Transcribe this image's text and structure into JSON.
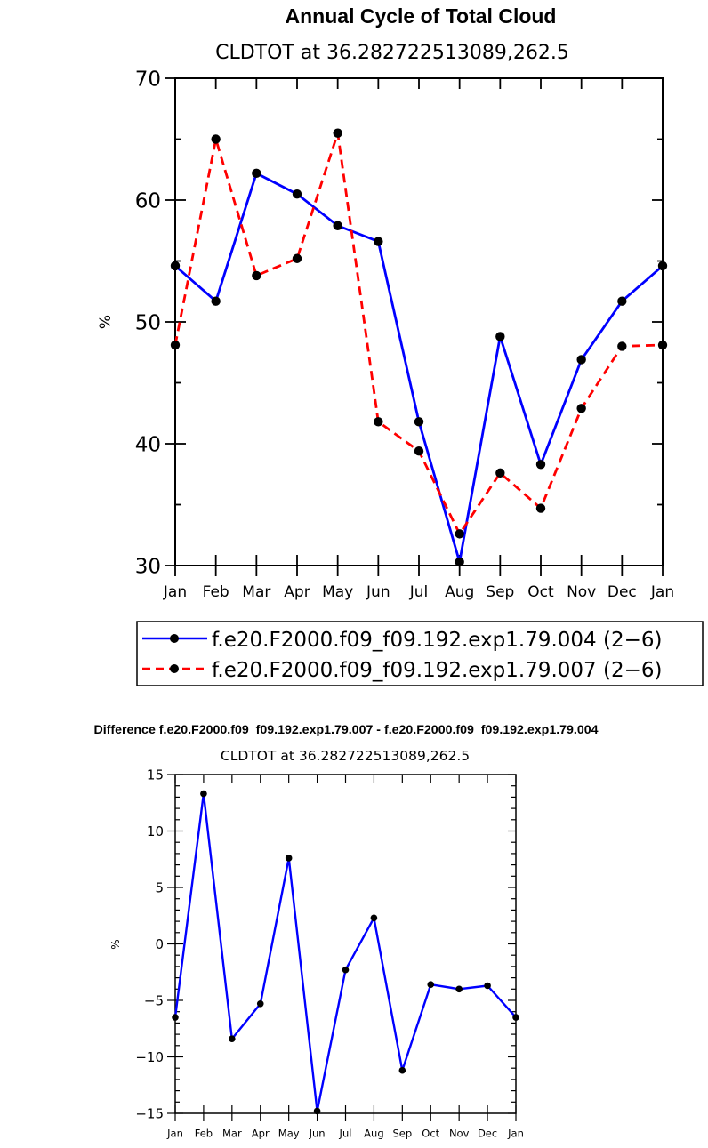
{
  "chart_data": [
    {
      "type": "line",
      "title": "Annual Cycle of Total Cloud",
      "subtitle": "CLDTOT at 36.282722513089,262.5",
      "ylabel": "%",
      "xlabel": "",
      "categories": [
        "Jan",
        "Feb",
        "Mar",
        "Apr",
        "May",
        "Jun",
        "Jul",
        "Aug",
        "Sep",
        "Oct",
        "Nov",
        "Dec",
        "Jan"
      ],
      "ylim": [
        30,
        70
      ],
      "yticks": [
        "30",
        "40",
        "50",
        "60",
        "70"
      ],
      "legend_position": "bottom",
      "series": [
        {
          "name": "f.e20.F2000.f09_f09.192.exp1.79.004 (2−6)",
          "color": "#0000ff",
          "dash": "solid",
          "values": [
            54.6,
            51.7,
            62.2,
            60.5,
            57.9,
            56.6,
            41.8,
            30.3,
            48.8,
            38.3,
            46.9,
            51.7,
            54.6
          ]
        },
        {
          "name": "f.e20.F2000.f09_f09.192.exp1.79.007 (2−6)",
          "color": "#ff0000",
          "dash": "dashed",
          "values": [
            48.1,
            65.0,
            53.8,
            55.2,
            65.5,
            41.8,
            39.4,
            32.6,
            37.6,
            34.7,
            42.9,
            48.0,
            48.1
          ]
        }
      ]
    },
    {
      "type": "line",
      "title": "Difference f.e20.F2000.f09_f09.192.exp1.79.007 - f.e20.F2000.f09_f09.192.exp1.79.004",
      "subtitle": "CLDTOT at 36.282722513089,262.5",
      "ylabel": "%",
      "xlabel": "",
      "categories": [
        "Jan",
        "Feb",
        "Mar",
        "Apr",
        "May",
        "Jun",
        "Jul",
        "Aug",
        "Sep",
        "Oct",
        "Nov",
        "Dec",
        "Jan"
      ],
      "ylim": [
        -15,
        15
      ],
      "yticks": [
        "−15",
        "−10",
        "−5",
        "0",
        "5",
        "10",
        "15"
      ],
      "series": [
        {
          "color": "#0000ff",
          "dash": "solid",
          "values": [
            -6.5,
            13.3,
            -8.4,
            -5.3,
            7.6,
            -14.8,
            -2.3,
            2.3,
            -11.2,
            -3.6,
            -4.0,
            -3.7,
            -6.5
          ]
        }
      ]
    }
  ]
}
